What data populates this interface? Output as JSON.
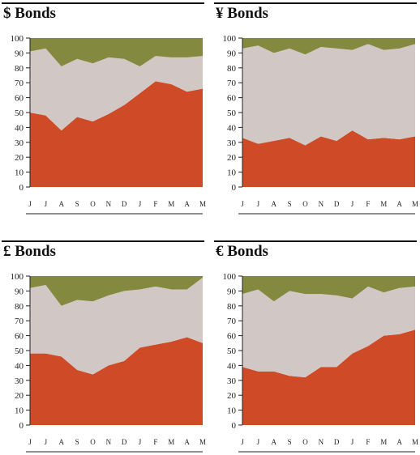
{
  "chart_data": [
    {
      "type": "area",
      "title": "$ Bonds",
      "categories": [
        "J",
        "J",
        "A",
        "S",
        "O",
        "N",
        "D",
        "J",
        "F",
        "M",
        "A",
        "M"
      ],
      "series": [
        {
          "values": [
            50,
            48,
            38,
            47,
            44,
            49,
            55,
            63,
            71,
            69,
            64,
            66
          ],
          "color": "#cf4a27"
        },
        {
          "values": [
            41,
            45,
            43,
            39,
            39,
            38,
            31,
            18,
            17,
            18,
            23,
            22
          ],
          "color": "#d1c8c5"
        },
        {
          "values": [
            9,
            7,
            19,
            14,
            17,
            13,
            14,
            19,
            12,
            13,
            13,
            12
          ],
          "color": "#83893e"
        }
      ],
      "ylim": [
        0,
        100
      ],
      "yticks": [
        0,
        10,
        20,
        30,
        40,
        50,
        60,
        70,
        80,
        90,
        100
      ],
      "grid": false
    },
    {
      "type": "area",
      "title": "¥ Bonds",
      "categories": [
        "J",
        "J",
        "A",
        "S",
        "O",
        "N",
        "D",
        "J",
        "F",
        "M",
        "A",
        "M"
      ],
      "series": [
        {
          "values": [
            33,
            29,
            31,
            33,
            28,
            34,
            31,
            38,
            32,
            33,
            32,
            34
          ],
          "color": "#cf4a27"
        },
        {
          "values": [
            60,
            66,
            59,
            60,
            61,
            60,
            62,
            54,
            64,
            59,
            61,
            62
          ],
          "color": "#d1c8c5"
        },
        {
          "values": [
            7,
            5,
            10,
            7,
            11,
            6,
            7,
            8,
            4,
            8,
            7,
            4
          ],
          "color": "#83893e"
        }
      ],
      "ylim": [
        0,
        100
      ],
      "yticks": [
        0,
        10,
        20,
        30,
        40,
        50,
        60,
        70,
        80,
        90,
        100
      ],
      "grid": false
    },
    {
      "type": "area",
      "title": "£ Bonds",
      "categories": [
        "J",
        "J",
        "A",
        "S",
        "O",
        "N",
        "D",
        "J",
        "F",
        "M",
        "A",
        "M"
      ],
      "series": [
        {
          "values": [
            48,
            48,
            46,
            37,
            34,
            40,
            43,
            52,
            54,
            56,
            59,
            55
          ],
          "color": "#cf4a27"
        },
        {
          "values": [
            44,
            46,
            34,
            47,
            49,
            47,
            47,
            39,
            39,
            35,
            32,
            44
          ],
          "color": "#d1c8c5"
        },
        {
          "values": [
            8,
            6,
            20,
            16,
            17,
            13,
            10,
            9,
            7,
            9,
            9,
            1
          ],
          "color": "#83893e"
        }
      ],
      "ylim": [
        0,
        100
      ],
      "yticks": [
        0,
        10,
        20,
        30,
        40,
        50,
        60,
        70,
        80,
        90,
        100
      ],
      "grid": false
    },
    {
      "type": "area",
      "title": "€ Bonds",
      "categories": [
        "J",
        "J",
        "A",
        "S",
        "O",
        "N",
        "D",
        "J",
        "F",
        "M",
        "A",
        "M"
      ],
      "series": [
        {
          "values": [
            39,
            36,
            36,
            33,
            32,
            39,
            39,
            48,
            53,
            60,
            61,
            64
          ],
          "color": "#cf4a27"
        },
        {
          "values": [
            49,
            55,
            47,
            57,
            56,
            49,
            48,
            37,
            40,
            29,
            31,
            29
          ],
          "color": "#d1c8c5"
        },
        {
          "values": [
            12,
            9,
            17,
            10,
            12,
            12,
            13,
            15,
            7,
            11,
            8,
            7
          ],
          "color": "#83893e"
        }
      ],
      "ylim": [
        0,
        100
      ],
      "yticks": [
        0,
        10,
        20,
        30,
        40,
        50,
        60,
        70,
        80,
        90,
        100
      ],
      "grid": false
    }
  ]
}
